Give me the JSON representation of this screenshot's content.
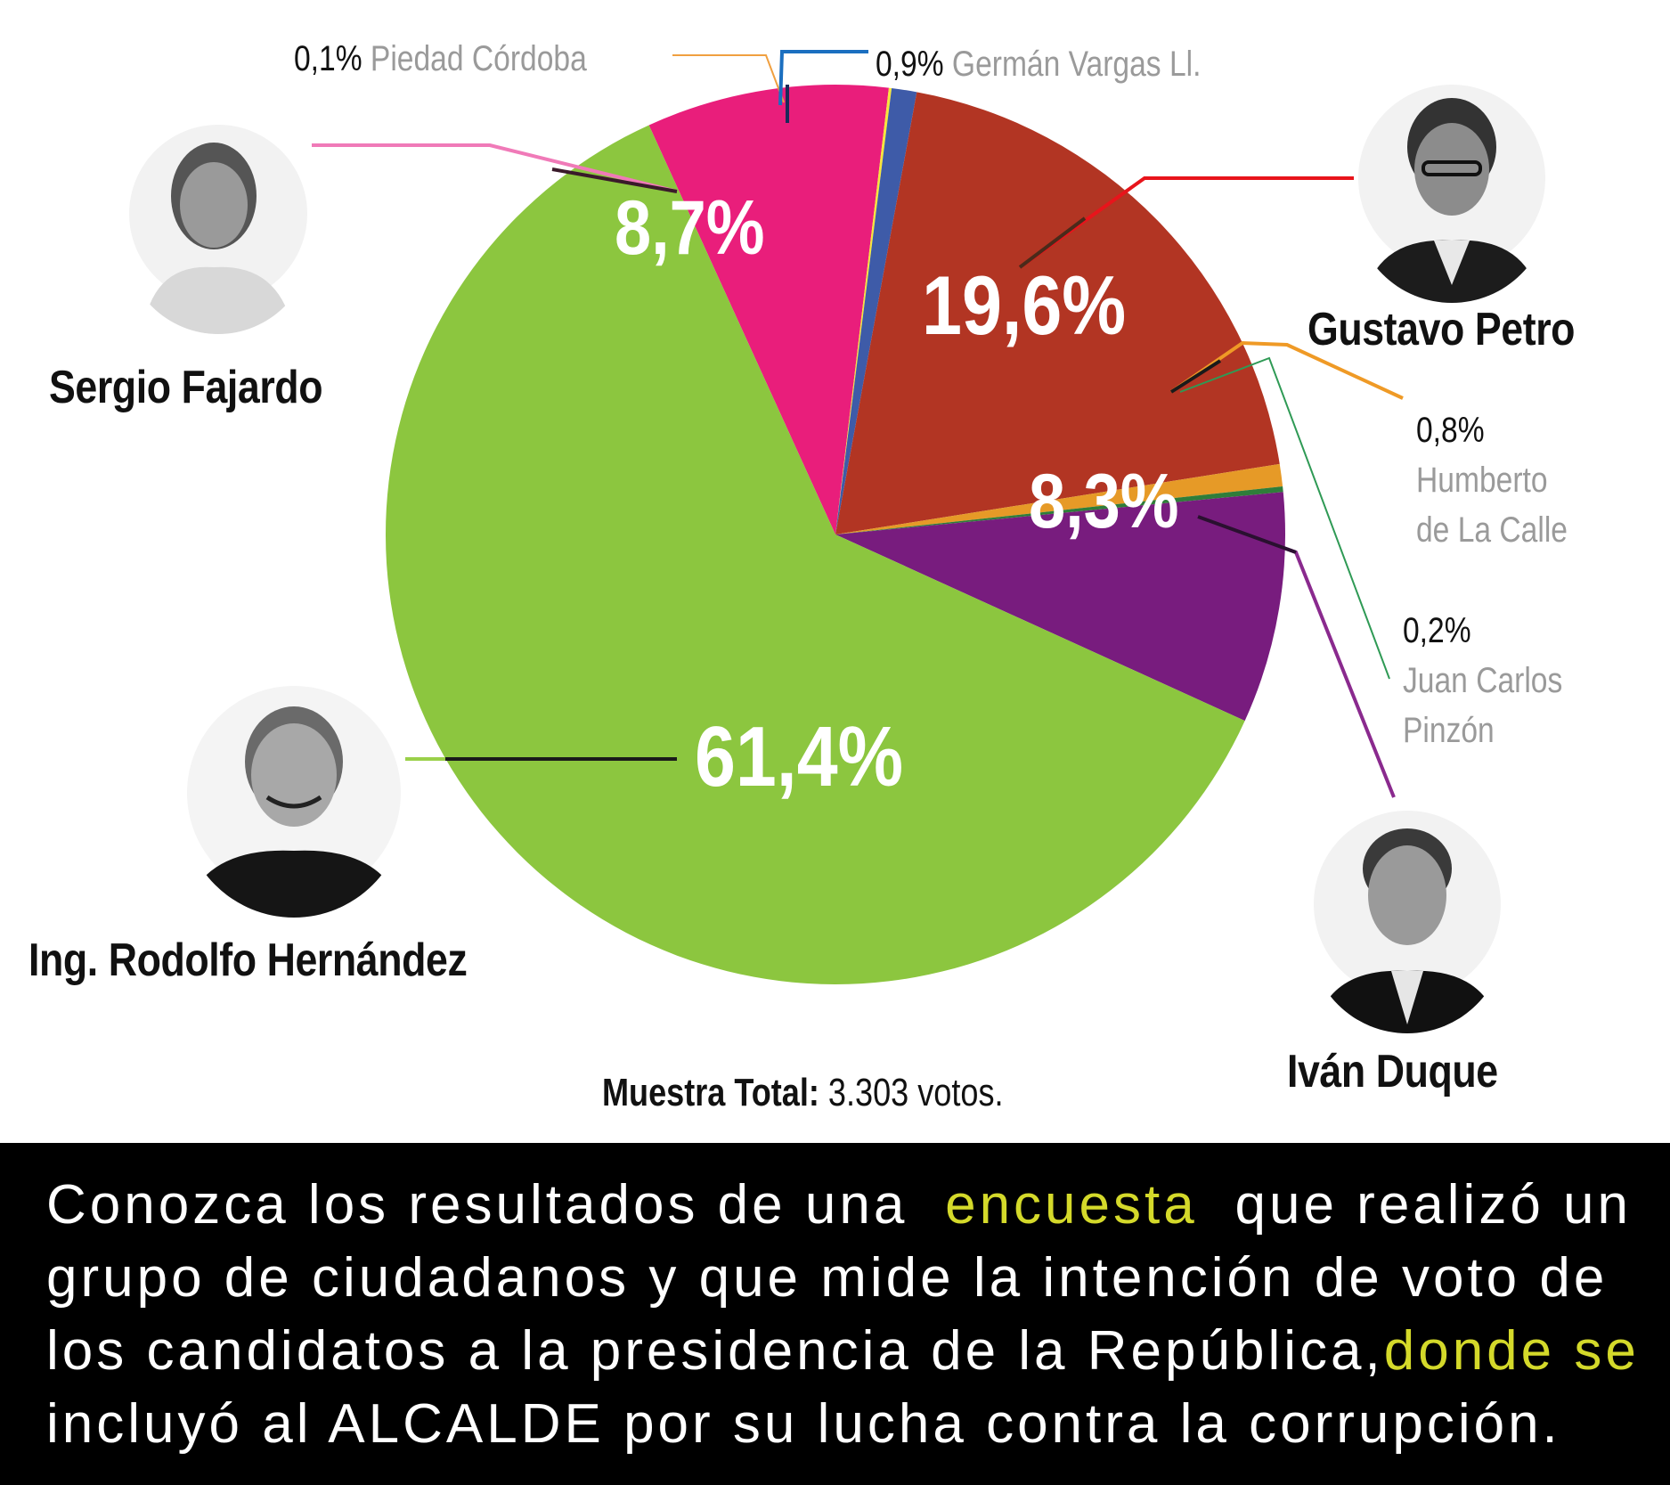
{
  "chart_data": {
    "type": "pie",
    "title": "",
    "slices": [
      {
        "label": "Ing. Rodolfo Hernández",
        "value": 61.4,
        "value_label": "61,4%",
        "color": "#8cc63f"
      },
      {
        "label": "Sergio Fajardo",
        "value": 8.7,
        "value_label": "8,7%",
        "color": "#e91e7b"
      },
      {
        "label": "Piedad Córdoba",
        "value": 0.1,
        "value_label": "0,1%",
        "color": "#f6e63a"
      },
      {
        "label": "Germán Vargas Ll.",
        "value": 0.9,
        "value_label": "0,9%",
        "color": "#3e5ba8"
      },
      {
        "label": "Gustavo Petro",
        "value": 19.6,
        "value_label": "19,6%",
        "color": "#b23523"
      },
      {
        "label": "Humberto de La Calle",
        "value": 0.8,
        "value_label": "0,8%",
        "color": "#e69a27"
      },
      {
        "label": "Juan Carlos Pinzón",
        "value": 0.2,
        "value_label": "0,2%",
        "color": "#2f7d3a"
      },
      {
        "label": "Iván Duque",
        "value": 8.3,
        "value_label": "8,3%",
        "color": "#781c7e"
      }
    ]
  },
  "candidates": {
    "fajardo": "Sergio Fajardo",
    "petro": "Gustavo Petro",
    "hernandez": "Ing. Rodolfo Hernández",
    "duque": "Iván Duque"
  },
  "small_labels": {
    "cordoba": {
      "pct": "0,1%",
      "name": "Piedad Córdoba"
    },
    "vargas": {
      "pct": "0,9%",
      "name": "Germán Vargas Ll."
    },
    "calle": {
      "pct": "0,8%",
      "name1": "Humberto",
      "name2": "de La Calle"
    },
    "pinzon": {
      "pct": "0,2%",
      "name1": "Juan Carlos",
      "name2": "Pinzón"
    }
  },
  "sample": {
    "label": "Muestra Total:",
    "value": "3.303 votos."
  },
  "banner": {
    "line1a": "Conozca los resultados de una",
    "line1b": "encuesta",
    "line1c": "que realizó un",
    "line2": "grupo de ciudadanos y que mide la intención de voto de",
    "line3a": "los candidatos a la presidencia de la República,",
    "line3b": "donde se",
    "line4": "incluyó al ALCALDE por su lucha contra la corrupción."
  },
  "colors": {
    "highlight": "#d4d92a",
    "banner_bg": "#000000"
  }
}
